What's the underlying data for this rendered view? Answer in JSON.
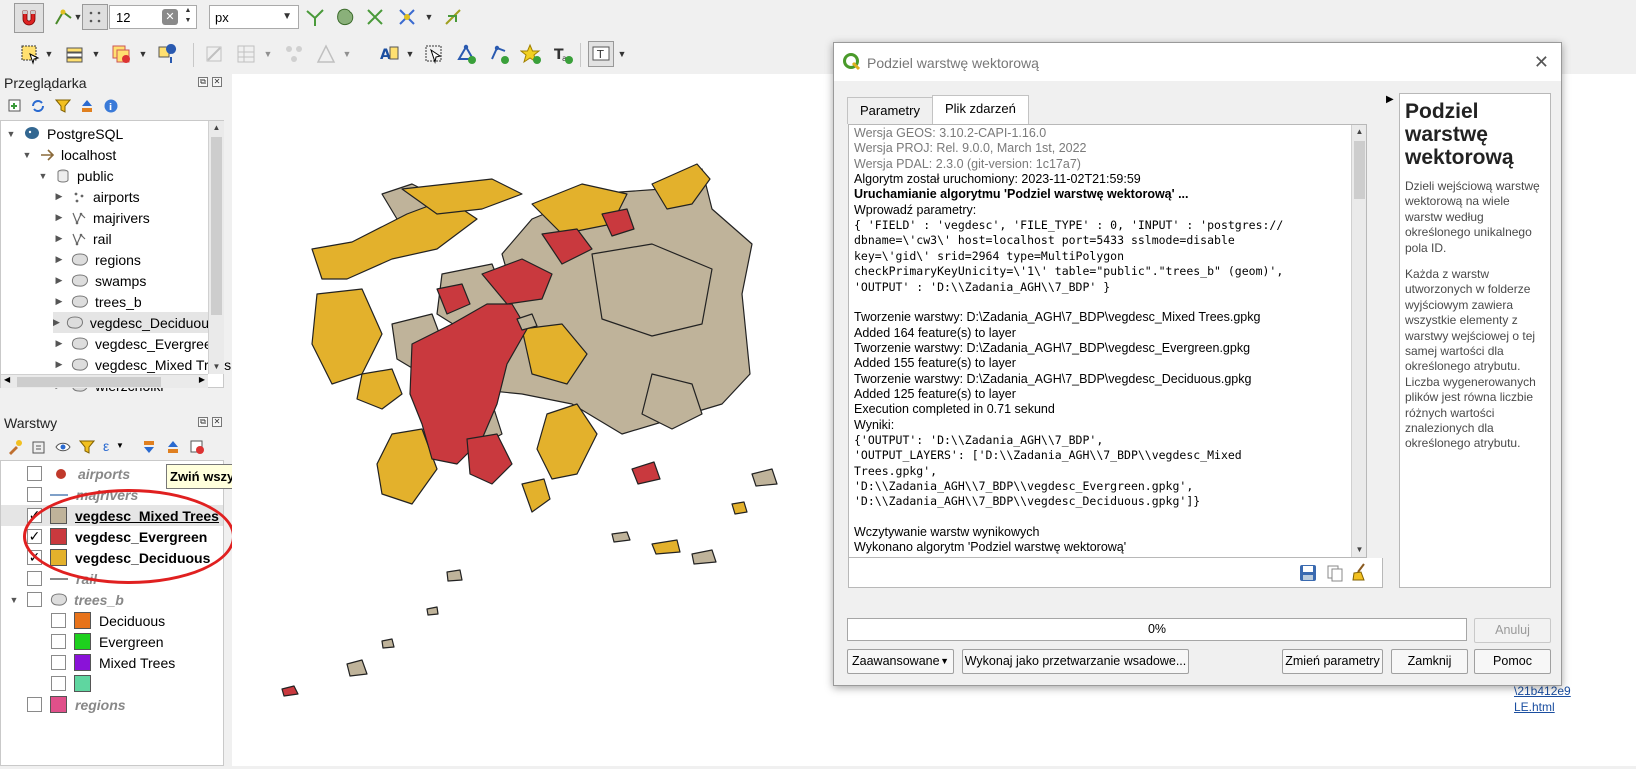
{
  "toolbar": {
    "tolerance_value": "12",
    "unit_value": "px"
  },
  "browser_panel": {
    "title": "Przeglądarka",
    "items": [
      {
        "label": "PostgreSQL",
        "level": 0
      },
      {
        "label": "localhost",
        "level": 1
      },
      {
        "label": "public",
        "level": 2
      },
      {
        "label": "airports",
        "level": 3
      },
      {
        "label": "majrivers",
        "level": 3
      },
      {
        "label": "rail",
        "level": 3
      },
      {
        "label": "regions",
        "level": 3
      },
      {
        "label": "swamps",
        "level": 3
      },
      {
        "label": "trees_b",
        "level": 3
      },
      {
        "label": "vegdesc_Deciduous",
        "level": 3
      },
      {
        "label": "vegdesc_Evergreen",
        "level": 3
      },
      {
        "label": "vegdesc_Mixed Trees",
        "level": 3
      },
      {
        "label": "wierzcholki",
        "level": 3
      }
    ]
  },
  "layers_panel": {
    "title": "Warstwy",
    "tooltip": "Zwiń wszystkie",
    "layers": [
      {
        "label": "airports",
        "checked": false,
        "color": "#c0392b"
      },
      {
        "label": "majrivers",
        "checked": false,
        "color": "#7fa0c8"
      },
      {
        "label": "vegdesc_Mixed Trees",
        "checked": true,
        "color": "#bfb39a"
      },
      {
        "label": "vegdesc_Evergreen",
        "checked": true,
        "color": "#c9393e"
      },
      {
        "label": "vegdesc_Deciduous",
        "checked": true,
        "color": "#e3b12c"
      },
      {
        "label": "rail",
        "checked": false,
        "color": "#888888"
      },
      {
        "label": "trees_b",
        "checked": false,
        "color": "#cccccc"
      },
      {
        "label": "Deciduous",
        "checked": false,
        "color": "#e8731a"
      },
      {
        "label": "Evergreen",
        "checked": false,
        "color": "#1ed01e"
      },
      {
        "label": "Mixed Trees",
        "checked": false,
        "color": "#8a12d8"
      },
      {
        "label": "",
        "checked": false,
        "color": "#5fd6a0"
      },
      {
        "label": "regions",
        "checked": false,
        "color": "#e0508a"
      }
    ]
  },
  "dialog": {
    "title": "Podziel warstwę wektorową",
    "tabs": [
      "Parametry",
      "Plik zdarzeń"
    ],
    "log_lines": [
      "Wersja GEOS: 3.10.2-CAPI-1.16.0",
      "Wersja PROJ: Rel. 9.0.0, March 1st, 2022",
      "Wersja PDAL: 2.3.0 (git-version: 1c17a7)",
      "Algorytm został uruchomiony: 2023-11-02T21:59:59",
      "Uruchamianie algorytmu 'Podziel warstwę wektorową' ...",
      "Wprowadź parametry:",
      "{ 'FIELD' : 'vegdesc', 'FILE_TYPE' : 0, 'INPUT' : 'postgres://",
      "dbname=\\'cw3\\' host=localhost port=5433 sslmode=disable",
      "key=\\'gid\\' srid=2964 type=MultiPolygon",
      "checkPrimaryKeyUnicity=\\'1\\' table=\"public\".\"trees_b\" (geom)',",
      "'OUTPUT' : 'D:\\\\Zadania_AGH\\\\7_BDP' }",
      "",
      "Tworzenie warstwy: D:\\Zadania_AGH\\7_BDP\\vegdesc_Mixed Trees.gpkg",
      "Added 164 feature(s) to layer",
      "Tworzenie warstwy: D:\\Zadania_AGH\\7_BDP\\vegdesc_Evergreen.gpkg",
      "Added 155 feature(s) to layer",
      "Tworzenie warstwy: D:\\Zadania_AGH\\7_BDP\\vegdesc_Deciduous.gpkg",
      "Added 125 feature(s) to layer",
      "Execution completed in 0.71 sekund",
      "Wyniki:",
      "{'OUTPUT': 'D:\\\\Zadania_AGH\\\\7_BDP',",
      "'OUTPUT_LAYERS': ['D:\\\\Zadania_AGH\\\\7_BDP\\\\vegdesc_Mixed",
      "Trees.gpkg',",
      "'D:\\\\Zadania_AGH\\\\7_BDP\\\\vegdesc_Evergreen.gpkg',",
      "'D:\\\\Zadania_AGH\\\\7_BDP\\\\vegdesc_Deciduous.gpkg']}",
      "",
      "Wczytywanie warstw wynikowych",
      "Wykonano algorytm 'Podziel warstwę wektorową'"
    ],
    "help_title": "Podziel warstwę wektorową",
    "help_p1": "Dzieli wejściową warstwę wektorową na wiele warstw według określonego unikalnego pola ID.",
    "help_p2": "Każda z warstw utworzonych w folderze wyjściowym zawiera wszystkie elementy z warstwy wejściowej o tej samej wartości dla określonego atrybutu. Liczba wygenerowanych plików jest równa liczbie różnych wartości znalezionych dla określonego atrybutu.",
    "progress_text": "0%",
    "progress_value": 0,
    "buttons": {
      "cancel": "Anuluj",
      "advanced": "Zaawansowane",
      "batch": "Wykonaj jako przetwarzanie wsadowe...",
      "change_params": "Zmień parametry",
      "close": "Zamknij",
      "help": "Pomoc"
    }
  },
  "right_strip_text": [
    "\\21b412e9",
    "LE.html"
  ],
  "colors": {
    "mixed_trees": "#bfb39a",
    "evergreen": "#c9393e",
    "deciduous": "#e3b12c",
    "highlight": "#e02020"
  }
}
